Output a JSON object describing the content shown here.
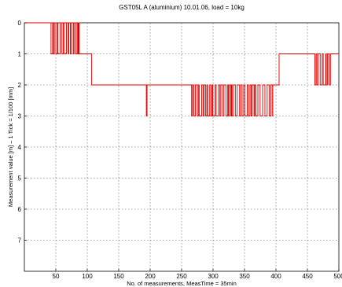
{
  "chart_data": {
    "type": "line",
    "title": "GST05L A (aluminium) 10.01.06, load = 10kg",
    "xlabel": "No. of measurements, MeasTime = 35min",
    "ylabel": "Measurement value [m] – 1 Tick = 1/100 [mm]",
    "xlim": [
      0,
      500
    ],
    "ylim": [
      0,
      8
    ],
    "y_inverted": true,
    "grid": true,
    "line_color": "#e00000",
    "xticks": [
      50,
      100,
      150,
      200,
      250,
      300,
      350,
      400,
      450,
      500
    ],
    "yticks": [
      0,
      1,
      2,
      3,
      4,
      5,
      6,
      7
    ],
    "series": [
      {
        "segments": [
          {
            "x_start": 0,
            "x_end": 40,
            "levels": [
              0
            ]
          },
          {
            "x_start": 40,
            "x_end": 87,
            "levels": [
              0,
              1
            ]
          },
          {
            "x_start": 87,
            "x_end": 107,
            "levels": [
              1
            ]
          },
          {
            "x_start": 107,
            "x_end": 190,
            "levels": [
              2
            ]
          },
          {
            "x_start": 190,
            "x_end": 197,
            "levels": [
              2,
              3
            ]
          },
          {
            "x_start": 197,
            "x_end": 262,
            "levels": [
              2
            ]
          },
          {
            "x_start": 262,
            "x_end": 395,
            "levels": [
              2,
              3
            ]
          },
          {
            "x_start": 395,
            "x_end": 405,
            "levels": [
              2
            ]
          },
          {
            "x_start": 405,
            "x_end": 460,
            "levels": [
              1
            ]
          },
          {
            "x_start": 460,
            "x_end": 487,
            "levels": [
              1,
              2
            ]
          },
          {
            "x_start": 487,
            "x_end": 500,
            "levels": [
              1
            ]
          }
        ]
      }
    ]
  }
}
